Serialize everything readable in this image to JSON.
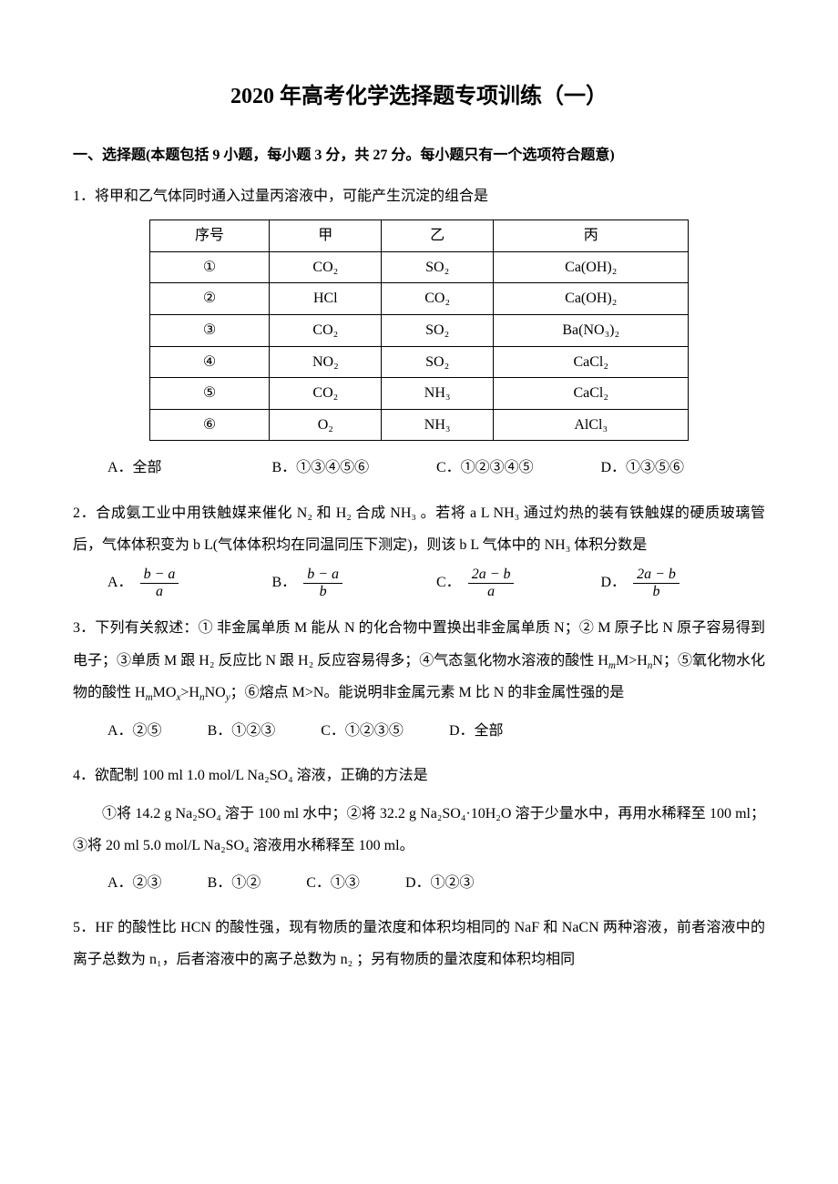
{
  "title": "2020 年高考化学选择题专项训练（一）",
  "section_header": "一、选择题(本题包括 9 小题，每小题 3 分，共 27 分。每小题只有一个选项符合题意)",
  "q1": {
    "stem": "1．将甲和乙气体同时通入过量丙溶液中，可能产生沉淀的组合是",
    "headers": [
      "序号",
      "甲",
      "乙",
      "丙"
    ],
    "rows": [
      [
        "①",
        "CO₂",
        "SO₂",
        "Ca(OH)₂"
      ],
      [
        "②",
        "HCl",
        "CO₂",
        "Ca(OH)₂"
      ],
      [
        "③",
        "CO₂",
        "SO₂",
        "Ba(NO₃)₂"
      ],
      [
        "④",
        "NO₂",
        "SO₂",
        "CaCl₂"
      ],
      [
        "⑤",
        "CO₂",
        "NH₃",
        "CaCl₂"
      ],
      [
        "⑥",
        "O₂",
        "NH₃",
        "AlCl₃"
      ]
    ],
    "options": {
      "A": "A．全部",
      "B": "B．①③④⑤⑥",
      "C": "C．①②③④⑤",
      "D": "D．①③⑤⑥"
    }
  },
  "q2": {
    "stem": "2．合成氨工业中用铁触媒来催化 N₂ 和 H₂ 合成 NH₃ 。若将 a L NH₃ 通过灼热的装有铁触媒的硬质玻璃管后，气体体积变为 b L(气体体积均在同温同压下测定)，则该 b L 气体中的 NH₃ 体积分数是",
    "options": {
      "A": {
        "label": "A．",
        "num": "b − a",
        "den": "a"
      },
      "B": {
        "label": "B．",
        "num": "b − a",
        "den": "b"
      },
      "C": {
        "label": "C．",
        "num": "2a − b",
        "den": "a"
      },
      "D": {
        "label": "D．",
        "num": "2a − b",
        "den": "b"
      }
    }
  },
  "q3": {
    "stem_pre": "3．下列有关叙述：① 非金属单质 M 能从 N 的化合物中置换出非金属单质 N；② M 原子比 N 原子容易得到电子；③单质 M 跟 H₂ 反应比 N 跟 H₂ 反应容易得多；④气态氢化物水溶液的酸性 H",
    "stem_sub1": "m",
    "stem_mid1": "M>H",
    "stem_sub2": "n",
    "stem_mid2": "N；⑤氧化物水化物的酸性 H",
    "stem_sub3": "m",
    "stem_mid3": "MO",
    "stem_sub4": "x",
    "stem_mid4": ">H",
    "stem_sub5": "n",
    "stem_mid5": "NO",
    "stem_sub6": "y",
    "stem_post": "；⑥熔点 M>N。能说明非金属元素 M 比 N 的非金属性强的是",
    "options": {
      "A": "A．②⑤",
      "B": "B．①②③",
      "C": "C．①②③⑤",
      "D": "D．全部"
    }
  },
  "q4": {
    "stem": "4．欲配制 100 ml 1.0 mol/L Na₂SO₄ 溶液，正确的方法是",
    "body": "①将 14.2 g Na₂SO₄ 溶于 100 ml 水中；②将 32.2 g Na₂SO₄·10H₂O 溶于少量水中，再用水稀释至 100 ml；③将 20 ml 5.0 mol/L Na₂SO₄ 溶液用水稀释至 100 ml。",
    "options": {
      "A": "A．②③",
      "B": "B．①②",
      "C": "C．①③",
      "D": "D．①②③"
    }
  },
  "q5": {
    "stem": "5．HF 的酸性比 HCN 的酸性强，现有物质的量浓度和体积均相同的 NaF 和 NaCN 两种溶液，前者溶液中的离子总数为 n₁，后者溶液中的离子总数为 n₂ ；另有物质的量浓度和体积均相同"
  }
}
